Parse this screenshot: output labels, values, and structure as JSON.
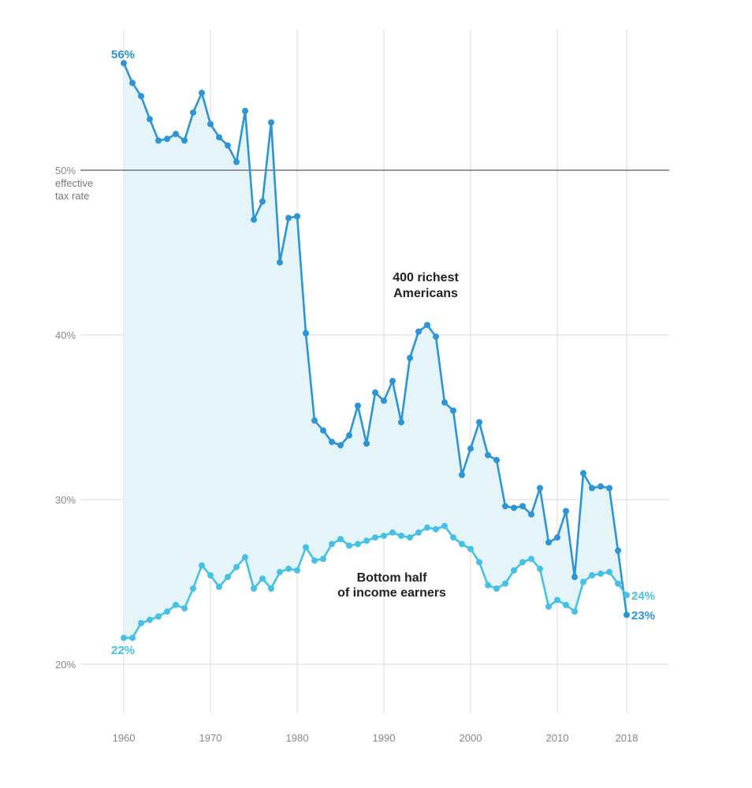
{
  "chart_data": {
    "type": "line",
    "title": "",
    "xlabel": "",
    "ylabel": "",
    "ylabel_note": [
      "effective",
      "tax rate"
    ],
    "xlim": [
      1955,
      2022
    ],
    "ylim": [
      16.5,
      58.5
    ],
    "x_ticks": [
      1960,
      1970,
      1980,
      1990,
      2000,
      2010,
      2018
    ],
    "x_tick_labels": [
      "1960",
      "1970",
      "1980",
      "1990",
      "2000",
      "2010",
      "2018"
    ],
    "y_ticks": [
      20,
      30,
      40,
      50
    ],
    "y_tick_labels": [
      "20%",
      "30%",
      "40%",
      "50%"
    ],
    "reference_line": 50,
    "grid": true,
    "area_fill_between_series": true,
    "colors": {
      "richest": "#2b95d6",
      "bottom": "#45c1e6",
      "fill": "#e5f4f8",
      "grid": "#d8d8d8",
      "reference": "#333333"
    },
    "x": [
      1960,
      1961,
      1962,
      1963,
      1964,
      1965,
      1966,
      1967,
      1968,
      1969,
      1970,
      1971,
      1972,
      1973,
      1974,
      1975,
      1976,
      1977,
      1978,
      1979,
      1980,
      1981,
      1982,
      1983,
      1984,
      1985,
      1986,
      1987,
      1988,
      1989,
      1990,
      1991,
      1992,
      1993,
      1994,
      1995,
      1996,
      1997,
      1998,
      1999,
      2000,
      2001,
      2002,
      2003,
      2004,
      2005,
      2006,
      2007,
      2008,
      2009,
      2010,
      2011,
      2012,
      2013,
      2014,
      2015,
      2016,
      2017,
      2018
    ],
    "series": [
      {
        "key": "richest",
        "name": "400 richest Americans",
        "label_lines": [
          "400 richest",
          "Americans"
        ],
        "start_label": "56%",
        "end_label": "23%",
        "values": [
          56.5,
          55.3,
          54.5,
          53.1,
          51.8,
          51.9,
          52.2,
          51.8,
          53.5,
          54.7,
          52.8,
          52.0,
          51.5,
          50.5,
          53.6,
          47.0,
          48.1,
          52.9,
          44.4,
          47.1,
          47.2,
          40.1,
          34.8,
          34.2,
          33.5,
          33.3,
          33.9,
          35.7,
          33.4,
          36.5,
          36.0,
          37.2,
          34.7,
          38.6,
          40.2,
          40.6,
          39.9,
          35.9,
          35.4,
          31.5,
          33.1,
          34.7,
          32.7,
          32.4,
          29.6,
          29.5,
          29.6,
          29.1,
          30.7,
          27.4,
          27.7,
          29.3,
          25.3,
          31.6,
          30.7,
          30.8,
          30.7,
          26.9,
          23.0
        ]
      },
      {
        "key": "bottom",
        "name": "Bottom half of income earners",
        "label_lines": [
          "Bottom half",
          "of income earners"
        ],
        "start_label": "22%",
        "end_label": "24%",
        "values": [
          21.6,
          21.6,
          22.5,
          22.7,
          22.9,
          23.2,
          23.6,
          23.4,
          24.6,
          26.0,
          25.4,
          24.7,
          25.3,
          25.9,
          26.5,
          24.6,
          25.2,
          24.6,
          25.6,
          25.8,
          25.7,
          27.1,
          26.3,
          26.4,
          27.3,
          27.6,
          27.2,
          27.3,
          27.5,
          27.7,
          27.8,
          28.0,
          27.8,
          27.7,
          28.0,
          28.3,
          28.2,
          28.4,
          27.7,
          27.3,
          27.0,
          26.2,
          24.8,
          24.6,
          24.9,
          25.7,
          26.2,
          26.4,
          25.8,
          23.5,
          23.9,
          23.6,
          23.2,
          25.0,
          25.4,
          25.5,
          25.6,
          24.9,
          24.2
        ]
      }
    ]
  }
}
